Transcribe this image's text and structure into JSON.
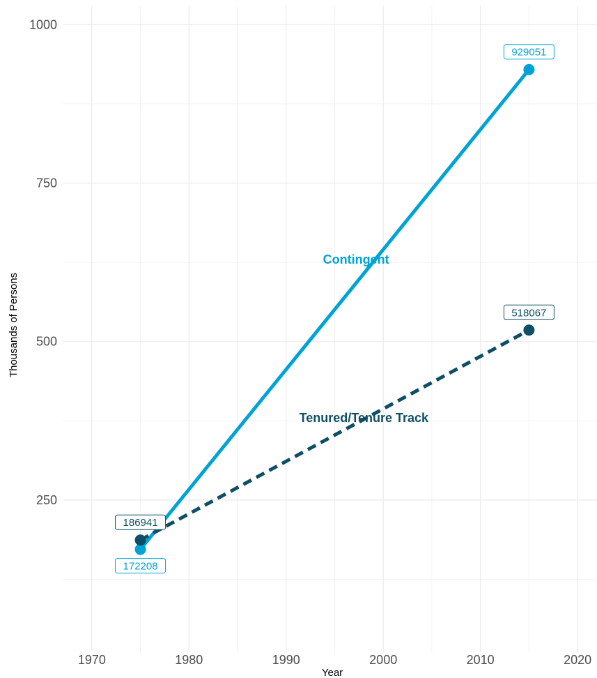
{
  "chart_data": {
    "type": "line",
    "xlabel": "Year",
    "ylabel": "Thousands of Persons",
    "xlim": [
      1967,
      2022
    ],
    "ylim": [
      10,
      1030
    ],
    "x_ticks": [
      1970,
      1980,
      1990,
      2000,
      2010,
      2020
    ],
    "y_ticks": [
      250,
      500,
      750,
      1000
    ],
    "grid": true,
    "series": [
      {
        "name": "Contingent",
        "color": "#00a3d6",
        "line_style": "solid",
        "points": [
          {
            "x": 1975,
            "y": 172.208,
            "label": "172208"
          },
          {
            "x": 2015,
            "y": 929.051,
            "label": "929051"
          }
        ]
      },
      {
        "name": "Tenured/Tenure Track",
        "color": "#0e4f66",
        "line_style": "dashed",
        "points": [
          {
            "x": 1975,
            "y": 186.941,
            "label": "186941"
          },
          {
            "x": 2015,
            "y": 518.067,
            "label": "518067"
          }
        ]
      }
    ]
  }
}
